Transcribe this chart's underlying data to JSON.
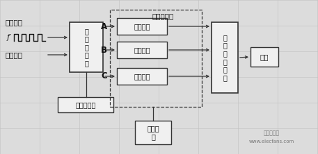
{
  "bg_color": "#e8e8e8",
  "labels": {
    "pulse_input": "步进脉冲",
    "freq": "f",
    "direction": "方向信号",
    "distributor": "脉\n冲\n分\n配\n器",
    "dist_power": "分配器电源",
    "power_amp_title": "功率放大器",
    "channel_A": "A",
    "channel_B": "B",
    "channel_C": "C",
    "func_circuit_1": "功放电路",
    "func_circuit_2": "功放电路",
    "func_circuit_3": "功放电路",
    "motor": "三\n相\n步\n进\n电\n机",
    "load": "负载",
    "power_supply": "功率电\n源"
  },
  "watermark_line1": "电子发烧友",
  "watermark_line2": "www.elecfans.com"
}
